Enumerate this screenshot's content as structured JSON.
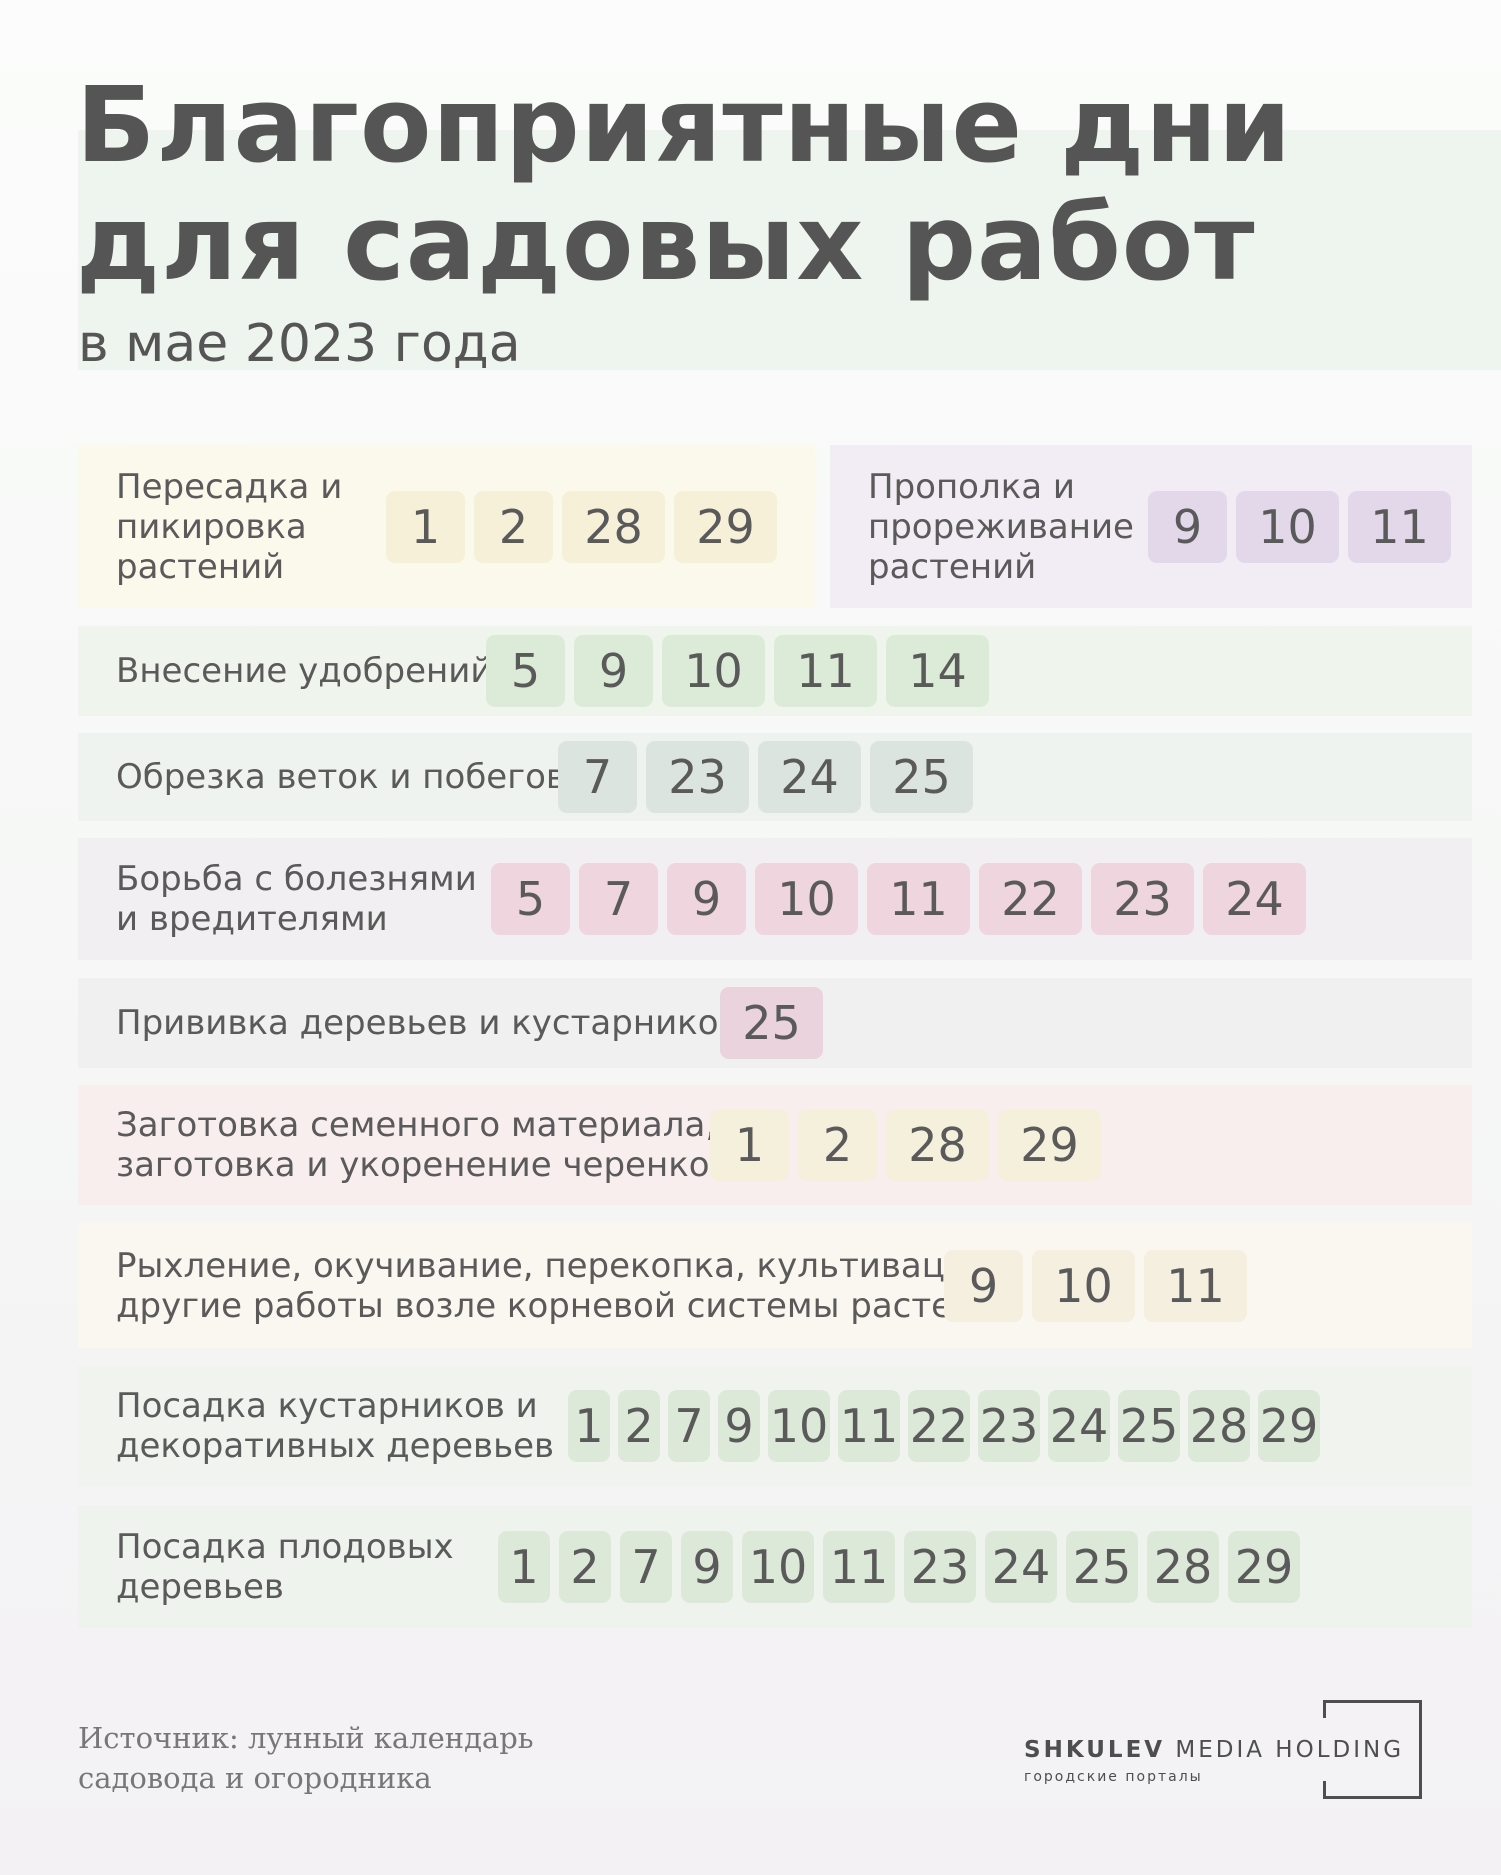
{
  "header": {
    "title_line1": "Благоприятные дни",
    "title_line2": "для садовых работ",
    "subtitle": "в мае 2023 года"
  },
  "rows": [
    {
      "label": [
        "Пересадка и",
        "пикировка",
        "растений"
      ],
      "days": [
        "1",
        "2",
        "28",
        "29"
      ],
      "chip_color": "#f6f0d8",
      "bg_color": "#fbf8ec"
    },
    {
      "label": [
        "Прополка и",
        "прореживание",
        "растений"
      ],
      "days": [
        "9",
        "10",
        "11"
      ],
      "chip_color": "#e2d8ea",
      "bg_color": "#f2edf4"
    },
    {
      "label": [
        "Внесение удобрений"
      ],
      "days": [
        "5",
        "9",
        "10",
        "11",
        "14"
      ],
      "chip_color": "#dcebd7",
      "bg_color": "#eff5ec"
    },
    {
      "label": [
        "Обрезка веток и побегов"
      ],
      "days": [
        "7",
        "23",
        "24",
        "25"
      ],
      "chip_color": "#dce4df",
      "bg_color": "#eef3ef"
    },
    {
      "label": [
        "Борьба с болезнями",
        "и вредителями"
      ],
      "days": [
        "5",
        "7",
        "9",
        "10",
        "11",
        "22",
        "23",
        "24"
      ],
      "chip_color": "#efd5dd",
      "bg_color": "#f1eff1"
    },
    {
      "label": [
        "Прививка деревьев и кустарников"
      ],
      "days": [
        "25"
      ],
      "chip_color": "#ead3dd",
      "bg_color": "#f1f0f1"
    },
    {
      "label": [
        "Заготовка семенного материала,",
        "заготовка и укоренение черенков"
      ],
      "days": [
        "1",
        "2",
        "28",
        "29"
      ],
      "chip_color": "#f5f0dc",
      "bg_color": "#f9eeee"
    },
    {
      "label": [
        "Рыхление, окучивание, перекопка, культивация и",
        "другие работы возле корневой системы растений"
      ],
      "days": [
        "9",
        "10",
        "11"
      ],
      "chip_color": "#f5efdf",
      "bg_color": "#f9f7ef"
    },
    {
      "label": [
        "Посадка кустарников и",
        "декоративных деревьев"
      ],
      "days": [
        "1",
        "2",
        "7",
        "9",
        "10",
        "11",
        "22",
        "23",
        "24",
        "25",
        "28",
        "29"
      ],
      "chip_color": "#dce9d8",
      "bg_color": "#f0f3ee"
    },
    {
      "label": [
        "Посадка плодовых",
        "деревьев"
      ],
      "days": [
        "1",
        "2",
        "7",
        "9",
        "10",
        "11",
        "23",
        "24",
        "25",
        "28",
        "29"
      ],
      "chip_color": "#dde9d8",
      "bg_color": "#eff3ee"
    }
  ],
  "footer": {
    "source_line1": "Источник: лунный календарь",
    "source_line2": "садовода и огородника",
    "logo_bold": "SHKULEV",
    "logo_rest": "MEDIA HOLDING",
    "logo_sub": "городские порталы"
  }
}
